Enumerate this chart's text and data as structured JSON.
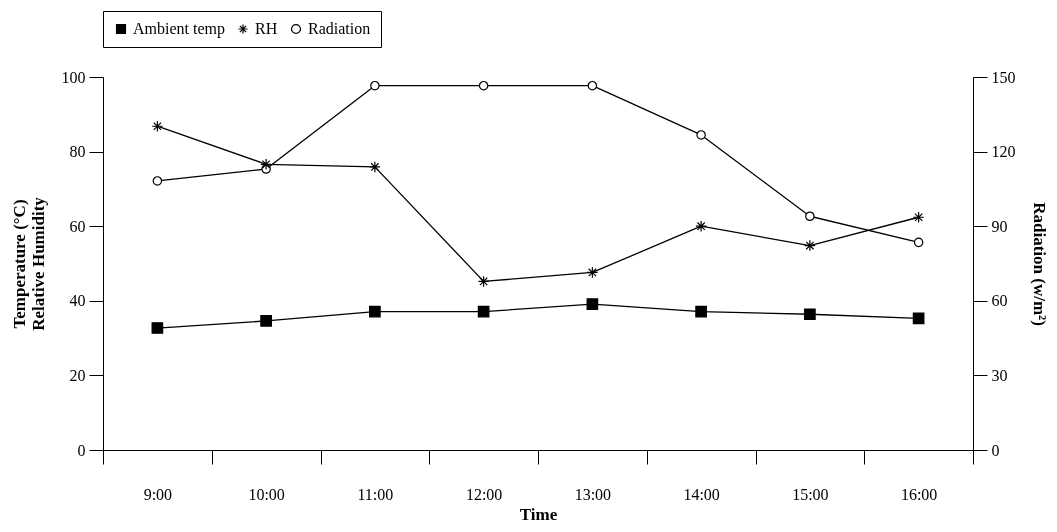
{
  "chart_data": {
    "type": "line",
    "xlabel": "Time",
    "ylabel": [
      "Temperature (°C)",
      "Relative Humidity"
    ],
    "y2label": "Radiation (w/m²)",
    "categories": [
      "9:00",
      "10:00",
      "11:00",
      "12:00",
      "13:00",
      "14:00",
      "15:00",
      "16:00"
    ],
    "series": [
      {
        "name": "Ambient temp",
        "color": "#000000",
        "marker": "square",
        "values": [
          32.7,
          34.6,
          37.1,
          37.1,
          39.1,
          37.1,
          36.4,
          35.3
        ]
      },
      {
        "name": "RH",
        "color": "#000000",
        "marker": "cross",
        "values": [
          86.8,
          76.6,
          75.9,
          45.2,
          47.6,
          60,
          54.8,
          62.4
        ]
      },
      {
        "name": "Radiation",
        "color": "#000000",
        "marker": "circle",
        "axis": "y2",
        "values": [
          108.2,
          113,
          146.5,
          146.5,
          146.5,
          126.7,
          94,
          83.5
        ]
      }
    ],
    "ylim": [
      0,
      100
    ],
    "yticks": [
      0,
      20,
      40,
      60,
      80,
      100
    ],
    "y2lim": [
      0,
      150
    ],
    "y2ticks": [
      0,
      30,
      60,
      90,
      120,
      150
    ],
    "grid": false,
    "legend": "top",
    "line_style": "solid"
  }
}
